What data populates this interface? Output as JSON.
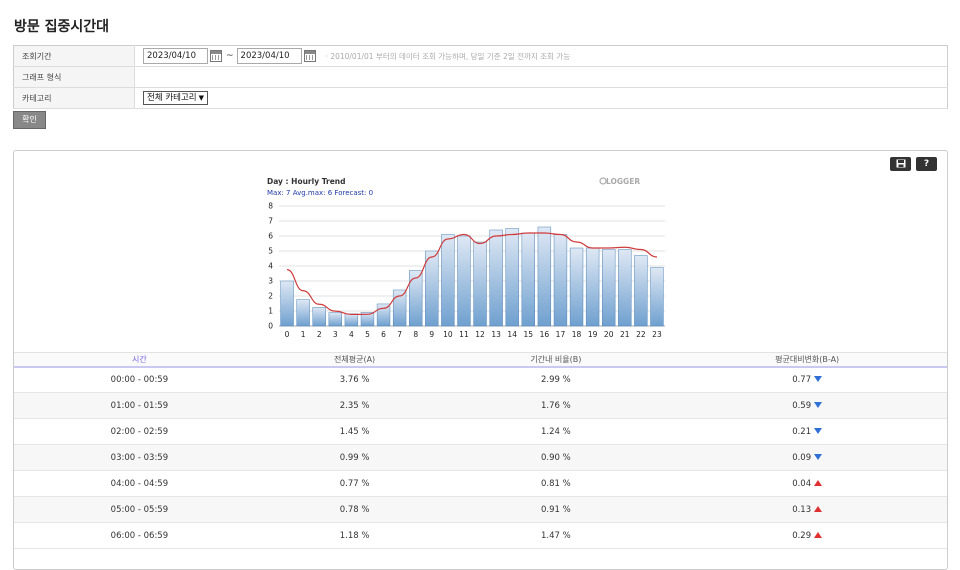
{
  "page": {
    "title": "방문 집중시간대"
  },
  "form": {
    "period_label": "조회기간",
    "date_from": "2023/04/10",
    "date_to": "2023/04/10",
    "separator": "~",
    "hint": "· 2010/01/01 부터의 데이터 조회 가능하며, 당일 기준 2일 전까지 조회 가능",
    "graph_type_label": "그래프 형식",
    "category_label": "카테고리",
    "category_value": "전체 카테고리",
    "submit_label": "확인"
  },
  "toolbar": {
    "save_icon": "save-icon",
    "help_label": "?"
  },
  "chart_data": {
    "type": "bar",
    "title": "Day : Hourly Trend",
    "summary": "Max: 7   Avg.max: 6   Forecast: 0",
    "brand": "LOGGER",
    "categories": [
      "0",
      "1",
      "2",
      "3",
      "4",
      "5",
      "6",
      "7",
      "8",
      "9",
      "10",
      "11",
      "12",
      "13",
      "14",
      "15",
      "16",
      "17",
      "18",
      "19",
      "20",
      "21",
      "22",
      "23"
    ],
    "ylim": [
      0,
      8
    ],
    "yticks": [
      "0",
      "1",
      "2",
      "3",
      "4",
      "5",
      "6",
      "7",
      "8"
    ],
    "series": [
      {
        "kind": "bar",
        "values": [
          3.0,
          1.76,
          1.24,
          0.9,
          0.81,
          0.91,
          1.47,
          2.4,
          3.7,
          5.0,
          6.1,
          6.0,
          5.6,
          6.4,
          6.5,
          6.2,
          6.6,
          6.1,
          5.2,
          5.2,
          5.1,
          5.1,
          4.7,
          3.9
        ]
      },
      {
        "kind": "line",
        "values": [
          3.76,
          2.35,
          1.45,
          0.99,
          0.77,
          0.78,
          1.18,
          2.0,
          3.2,
          4.6,
          5.8,
          6.1,
          5.5,
          6.0,
          6.1,
          6.2,
          6.2,
          6.1,
          5.6,
          5.2,
          5.2,
          5.25,
          5.1,
          4.6
        ]
      }
    ],
    "colors": {
      "bar_fill_top": "#dfe8f4",
      "bar_fill_bottom": "#6fa0cf",
      "bar_stroke": "#4f84b8",
      "line": "#d03a3a"
    }
  },
  "table": {
    "headers": [
      "시간",
      "전체평균(A)",
      "기간내 비율(B)",
      "평균대비변화(B-A)"
    ],
    "rows": [
      {
        "time": "00:00 - 00:59",
        "avg": "3.76 %",
        "ratio": "2.99 %",
        "change": "0.77",
        "dir": "down"
      },
      {
        "time": "01:00 - 01:59",
        "avg": "2.35 %",
        "ratio": "1.76 %",
        "change": "0.59",
        "dir": "down"
      },
      {
        "time": "02:00 - 02:59",
        "avg": "1.45 %",
        "ratio": "1.24 %",
        "change": "0.21",
        "dir": "down"
      },
      {
        "time": "03:00 - 03:59",
        "avg": "0.99 %",
        "ratio": "0.90 %",
        "change": "0.09",
        "dir": "down"
      },
      {
        "time": "04:00 - 04:59",
        "avg": "0.77 %",
        "ratio": "0.81 %",
        "change": "0.04",
        "dir": "up"
      },
      {
        "time": "05:00 - 05:59",
        "avg": "0.78 %",
        "ratio": "0.91 %",
        "change": "0.13",
        "dir": "up"
      },
      {
        "time": "06:00 - 06:59",
        "avg": "1.18 %",
        "ratio": "1.47 %",
        "change": "0.29",
        "dir": "up"
      }
    ]
  },
  "colors": {
    "down": "#2f6fd6",
    "up": "#e03030",
    "header_accent": "#7a6ae0"
  }
}
